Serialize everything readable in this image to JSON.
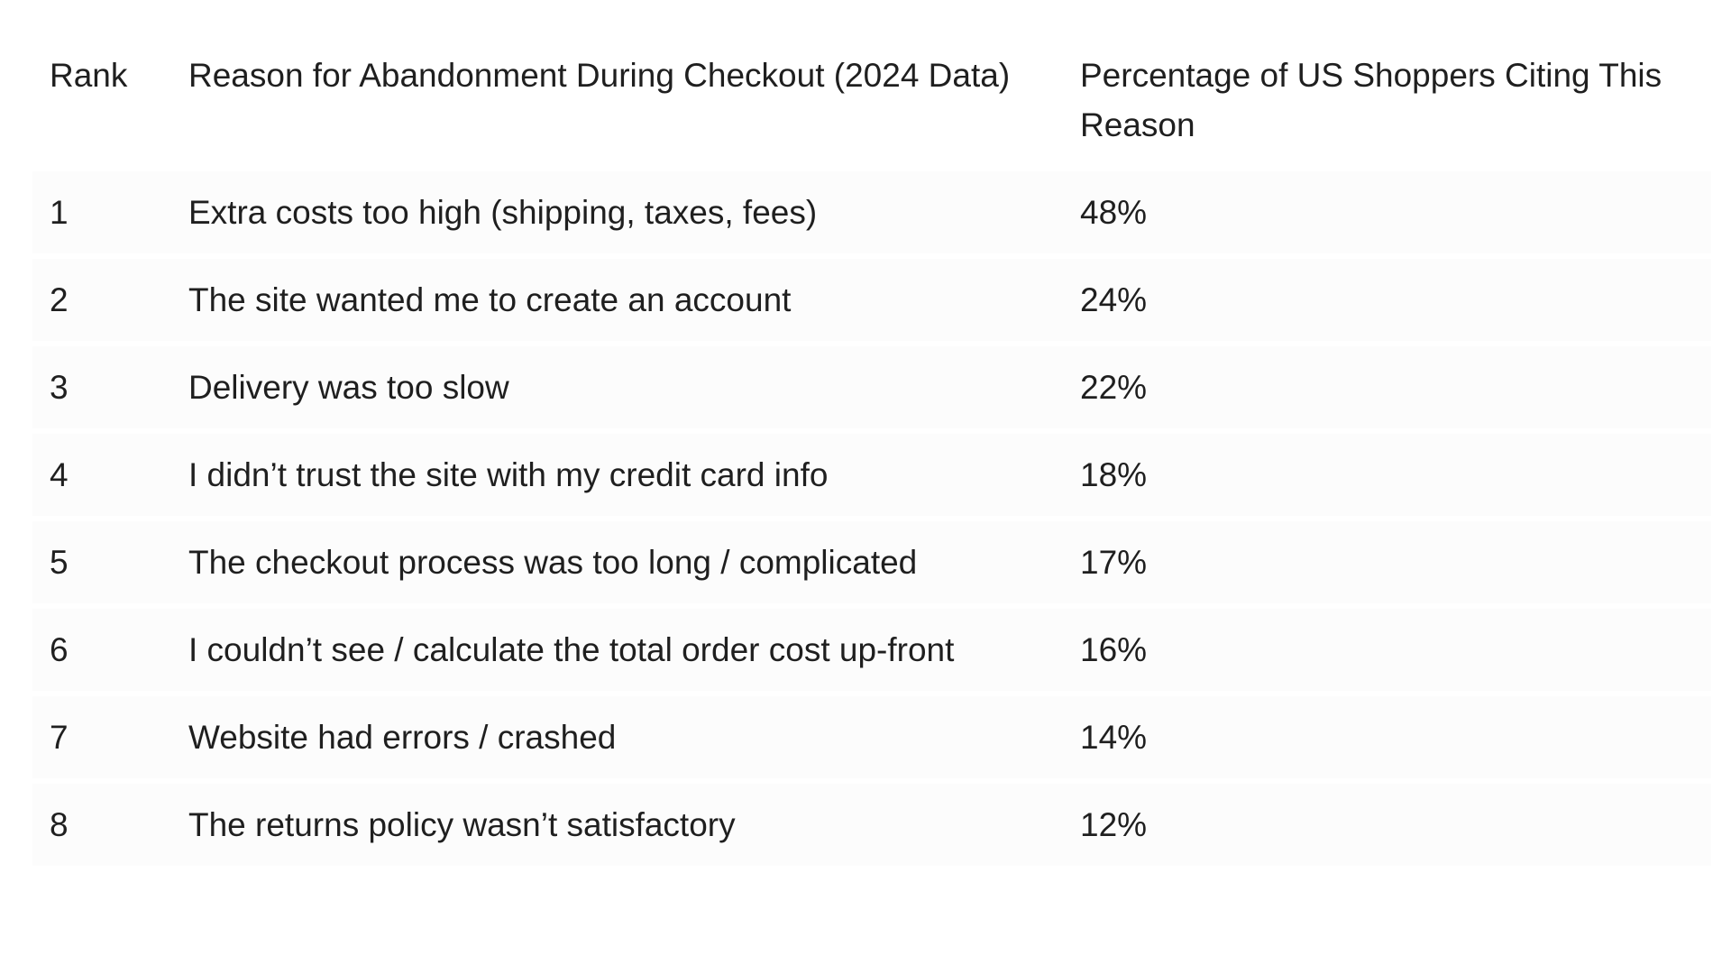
{
  "table": {
    "headers": [
      "Rank",
      "Reason for Abandonment During Checkout (2024 Data)",
      "Percentage of US Shoppers Citing This Reason"
    ],
    "rows": [
      [
        "1",
        "Extra costs too high (shipping, taxes, fees)",
        "48%"
      ],
      [
        "2",
        "The site wanted me to create an account",
        "24%"
      ],
      [
        "3",
        "Delivery was too slow",
        "22%"
      ],
      [
        "4",
        "I didn’t trust the site with my credit card info",
        "18%"
      ],
      [
        "5",
        "The checkout process was too long / complicated",
        "17%"
      ],
      [
        "6",
        "I couldn’t see / calculate the total order cost up-front",
        "16%"
      ],
      [
        "7",
        "Website had errors / crashed",
        "14%"
      ],
      [
        "8",
        "The returns policy wasn’t satisfactory",
        "12%"
      ]
    ]
  }
}
